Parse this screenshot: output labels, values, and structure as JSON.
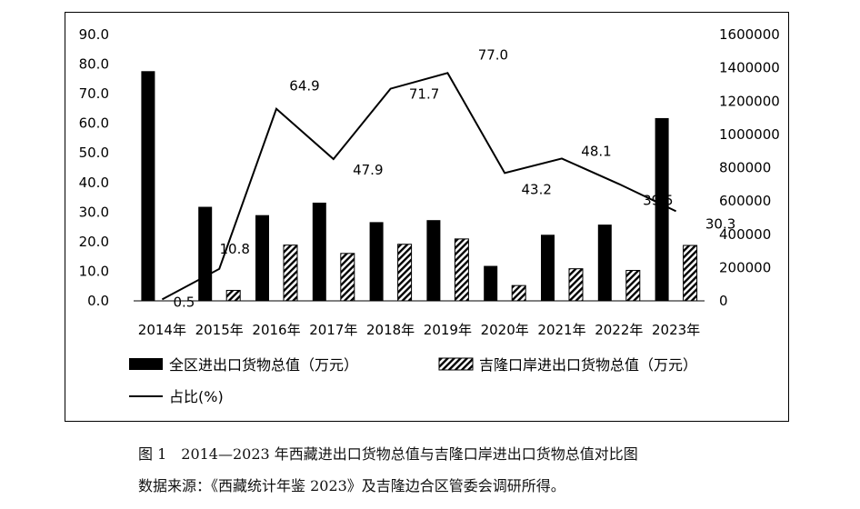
{
  "chart_data": {
    "type": "bar",
    "categories": [
      "2014年",
      "2015年",
      "2016年",
      "2017年",
      "2018年",
      "2019年",
      "2020年",
      "2021年",
      "2022年",
      "2023年"
    ],
    "series": [
      {
        "name": "全区进出口货物总值（万元）",
        "type": "bar",
        "axis": "right",
        "color": "#000000",
        "values": [
          1380000,
          565000,
          515000,
          590000,
          473000,
          485000,
          210000,
          397000,
          458000,
          1098000
        ]
      },
      {
        "name": "吉隆口岸进出口货物总值（万元）",
        "type": "bar",
        "axis": "right",
        "pattern": "diagonal-hatch",
        "values": [
          0,
          63000,
          335000,
          285000,
          340000,
          372000,
          92000,
          193000,
          183000,
          333000
        ]
      },
      {
        "name": "占比(%)",
        "type": "line",
        "axis": "left",
        "color": "#000000",
        "values": [
          0.5,
          10.8,
          64.9,
          47.9,
          71.7,
          77.0,
          43.2,
          48.1,
          39.5,
          30.3
        ],
        "labels": [
          "0.5",
          "10.8",
          "64.9",
          "47.9",
          "71.7",
          "77.0",
          "43.2",
          "48.1",
          "39.5",
          "30.3"
        ]
      }
    ],
    "y_left": {
      "ylim": [
        0,
        90
      ],
      "ticks": [
        "0.0",
        "10.0",
        "20.0",
        "30.0",
        "40.0",
        "50.0",
        "60.0",
        "70.0",
        "80.0",
        "90.0"
      ]
    },
    "y_right": {
      "ylim": [
        0,
        1600000
      ],
      "ticks": [
        "0",
        "200000",
        "400000",
        "600000",
        "800000",
        "1000000",
        "1200000",
        "1400000",
        "1600000"
      ]
    },
    "grid": false,
    "legend_position": "bottom"
  },
  "caption": {
    "line1": "图 1　2014—2023 年西藏进出口货物总值与吉隆口岸进出口货物总值对比图",
    "line2": "数据来源：《西藏统计年鉴 2023》及吉隆边合区管委会调研所得。"
  }
}
